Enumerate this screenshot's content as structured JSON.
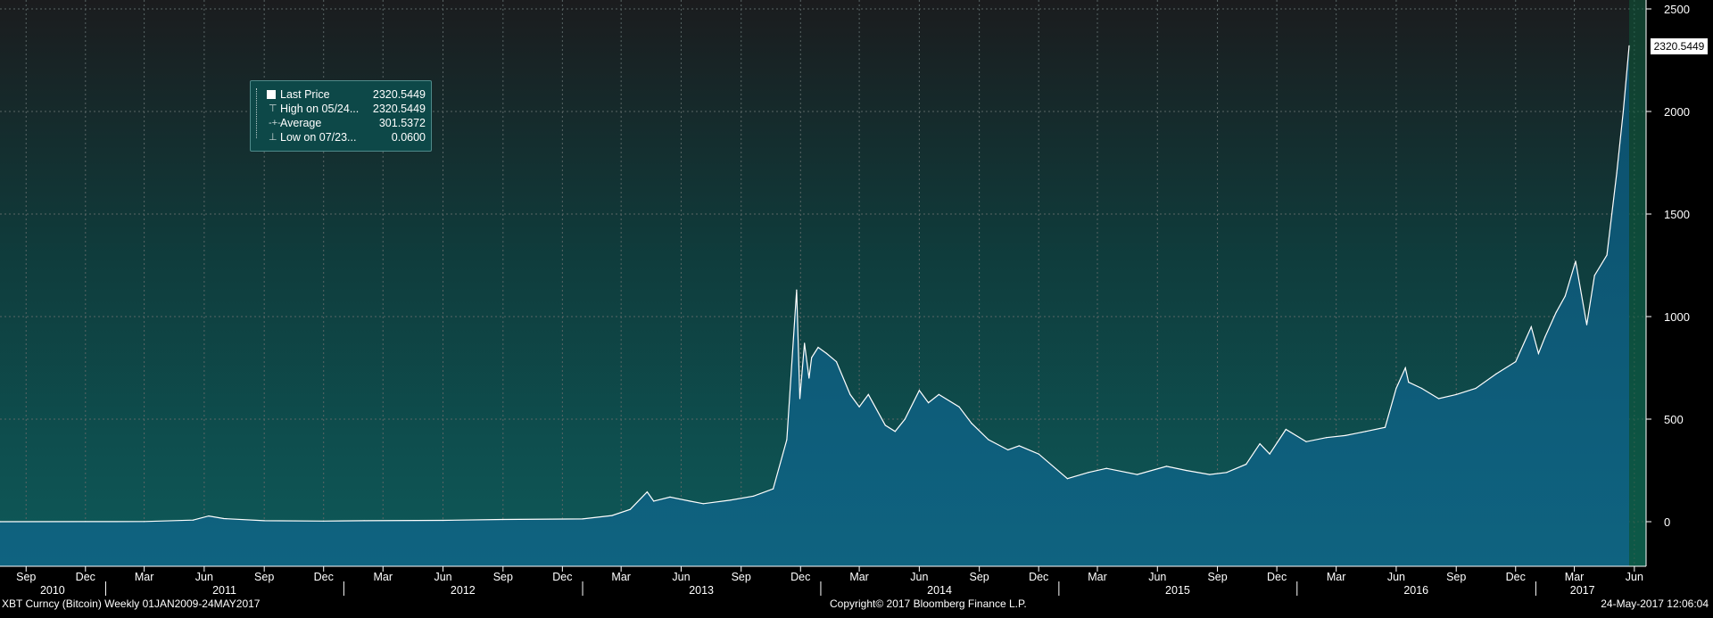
{
  "legend": {
    "items": [
      {
        "label": "Last Price",
        "value": "2320.5449"
      },
      {
        "label": "High on 05/24...",
        "value": "2320.5449"
      },
      {
        "label": "Average",
        "value": "301.5372"
      },
      {
        "label": "Low on 07/23...",
        "value": "0.0600"
      }
    ]
  },
  "last_price_label": "2320.5449",
  "footer": {
    "left": "XBT Curncy (Bitcoin)  Weekly 01JAN2009-24MAY2017",
    "center": "Copyright© 2017 Bloomberg Finance L.P.",
    "right": "24-May-2017 12:06:04"
  },
  "colors": {
    "background_top": "#1b1c1e",
    "background_bottom": "#0e5a5a",
    "area_fill": "#0f5b79",
    "line": "#ffffff",
    "grid": "#4d5a5a"
  },
  "chart_data": {
    "type": "area",
    "title": "",
    "xlabel": "",
    "ylabel": "",
    "ylim": [
      -220,
      2500
    ],
    "yticks": [
      0,
      500,
      1000,
      1500,
      2000,
      2500
    ],
    "month_ticks": [
      "Sep",
      "Dec",
      "Mar",
      "Jun",
      "Sep",
      "Dec",
      "Mar",
      "Jun",
      "Sep",
      "Dec",
      "Mar",
      "Jun",
      "Sep",
      "Dec",
      "Mar",
      "Jun",
      "Sep",
      "Dec",
      "Mar",
      "Jun",
      "Sep",
      "Dec",
      "Mar",
      "Jun",
      "Sep",
      "Dec",
      "Mar",
      "Jun"
    ],
    "year_labels": [
      "2010",
      "2011",
      "2012",
      "2013",
      "2014",
      "2015",
      "2016",
      "2017"
    ],
    "grid": true,
    "series": [
      {
        "x": [
          "2010-07-23",
          "2010-12-01",
          "2011-03-01",
          "2011-05-15",
          "2011-06-08",
          "2011-07-01",
          "2011-09-01",
          "2011-12-01",
          "2012-02-01",
          "2012-06-01",
          "2012-09-01",
          "2013-01-01",
          "2013-02-15",
          "2013-03-15",
          "2013-04-10",
          "2013-04-20",
          "2013-05-15",
          "2013-06-15",
          "2013-07-05",
          "2013-08-15",
          "2013-09-20",
          "2013-10-20",
          "2013-11-10",
          "2013-11-25",
          "2013-11-30",
          "2013-12-07",
          "2013-12-14",
          "2013-12-18",
          "2013-12-28",
          "2014-01-10",
          "2014-01-25",
          "2014-02-15",
          "2014-03-01",
          "2014-03-15",
          "2014-04-10",
          "2014-04-25",
          "2014-05-10",
          "2014-06-01",
          "2014-06-15",
          "2014-07-01",
          "2014-08-01",
          "2014-08-20",
          "2014-09-15",
          "2014-10-15",
          "2014-11-01",
          "2014-12-01",
          "2015-01-14",
          "2015-02-15",
          "2015-03-15",
          "2015-05-01",
          "2015-06-15",
          "2015-07-15",
          "2015-08-20",
          "2015-09-15",
          "2015-10-15",
          "2015-11-05",
          "2015-11-20",
          "2015-12-15",
          "2016-01-15",
          "2016-02-15",
          "2016-03-15",
          "2016-04-15",
          "2016-05-15",
          "2016-06-01",
          "2016-06-15",
          "2016-06-20",
          "2016-07-10",
          "2016-08-05",
          "2016-09-01",
          "2016-10-01",
          "2016-11-01",
          "2016-12-01",
          "2016-12-25",
          "2017-01-05",
          "2017-01-15",
          "2017-02-01",
          "2017-02-15",
          "2017-03-03",
          "2017-03-20",
          "2017-04-01",
          "2017-04-20",
          "2017-05-05",
          "2017-05-15",
          "2017-05-24"
        ],
        "y": [
          0.06,
          0.3,
          0.9,
          8,
          28,
          15,
          5,
          3,
          5,
          6.5,
          11,
          13.5,
          30,
          60,
          145,
          100,
          120,
          100,
          88,
          105,
          125,
          160,
          400,
          1130,
          600,
          870,
          700,
          800,
          850,
          820,
          780,
          620,
          560,
          620,
          470,
          440,
          500,
          640,
          580,
          620,
          560,
          480,
          400,
          350,
          370,
          330,
          210,
          240,
          260,
          230,
          270,
          250,
          230,
          240,
          280,
          380,
          330,
          450,
          390,
          410,
          420,
          440,
          460,
          650,
          750,
          680,
          650,
          600,
          620,
          650,
          720,
          780,
          950,
          820,
          900,
          1020,
          1100,
          1270,
          960,
          1200,
          1300,
          1700,
          2000,
          2320.5449
        ]
      }
    ]
  }
}
